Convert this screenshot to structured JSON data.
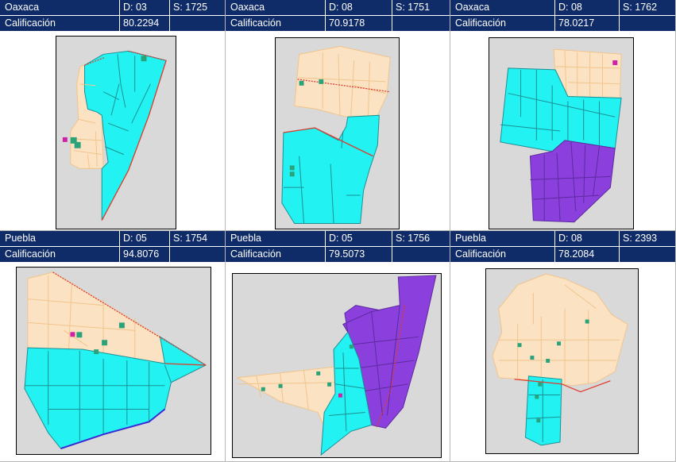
{
  "panels": [
    {
      "state": "Oaxaca",
      "district": "D: 03",
      "section": "S: 1725",
      "score_label": "Calificación",
      "score": "80.2294"
    },
    {
      "state": "Oaxaca",
      "district": "D: 08",
      "section": "S: 1751",
      "score_label": "Calificación",
      "score": "70.9178"
    },
    {
      "state": "Oaxaca",
      "district": "D: 08",
      "section": "S: 1762",
      "score_label": "Calificación",
      "score": "78.0217"
    },
    {
      "state": "Puebla",
      "district": "D: 05",
      "section": "S: 1754",
      "score_label": "Calificación",
      "score": "94.8076"
    },
    {
      "state": "Puebla",
      "district": "D: 05",
      "section": "S: 1756",
      "score_label": "Calificación",
      "score": "79.5073"
    },
    {
      "state": "Puebla",
      "district": "D: 08",
      "section": "S: 2393",
      "score_label": "Calificación",
      "score": "78.2084"
    }
  ],
  "colors": {
    "header_bg": "#0f2c68",
    "header_text": "#ffffff",
    "map_bg": "#d9d9d9",
    "zone_cyan": "#22f2f2",
    "zone_beige": "#fbe2c3",
    "zone_purple": "#8b3fdc",
    "boundary_red": "#e03c2c",
    "boundary_blue": "#3a2ad6",
    "marker_green": "#2aa37a",
    "marker_magenta": "#d020a8"
  },
  "icons": [
    "house-marker-icon"
  ]
}
